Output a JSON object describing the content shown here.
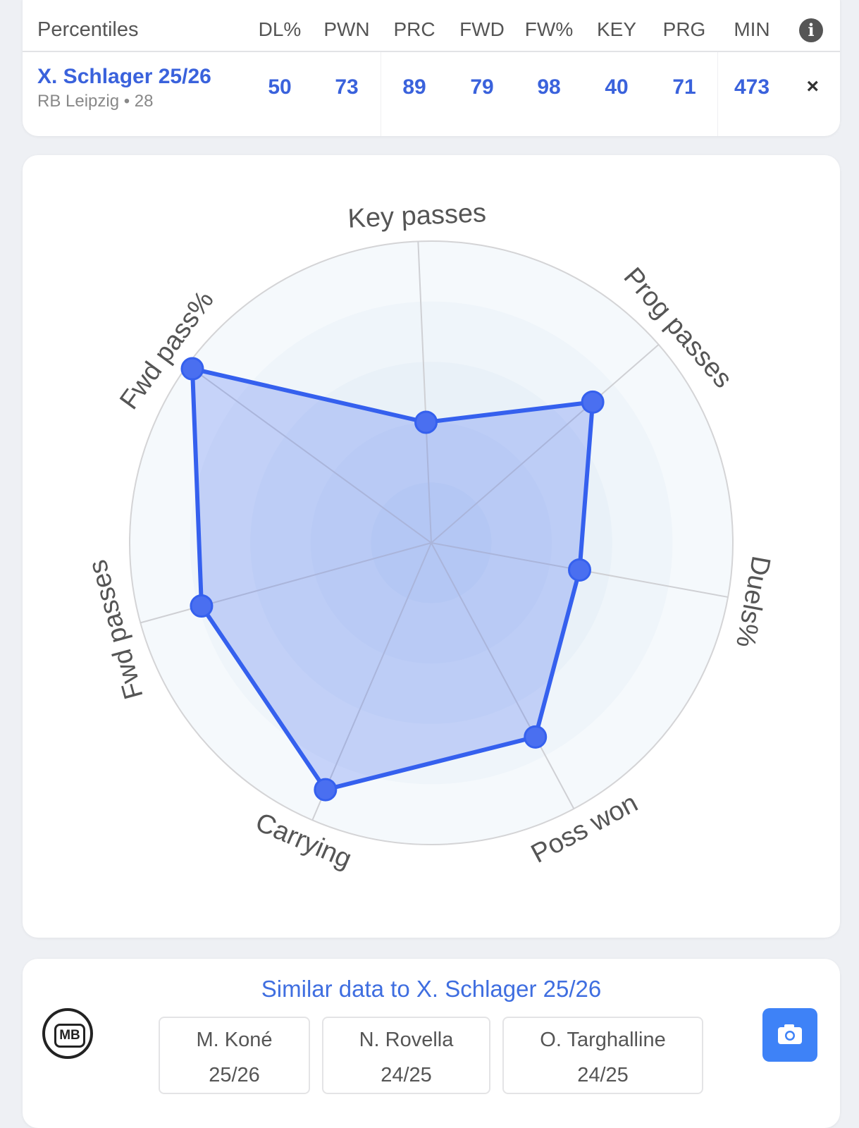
{
  "table": {
    "title": "Percentiles",
    "columns": [
      "DL%",
      "PWN",
      "PRC",
      "FWD",
      "FW%",
      "KEY",
      "PRG",
      "MIN"
    ],
    "player": {
      "name": "X. Schlager 25/26",
      "team": "RB Leipzig • 28",
      "values": [
        "50",
        "73",
        "89",
        "79",
        "98",
        "40",
        "71",
        "473"
      ]
    },
    "close": "×",
    "info": "i"
  },
  "chart_data": {
    "type": "radar",
    "axes": [
      "Key passes",
      "Prog passes",
      "Duels%",
      "Poss won",
      "Carrying",
      "Fwd passes",
      "Fwd pass%"
    ],
    "series": [
      {
        "name": "X. Schlager 25/26",
        "values": [
          40,
          71,
          50,
          73,
          89,
          79,
          98
        ]
      }
    ],
    "range": [
      0,
      100
    ],
    "color": "#3560ee"
  },
  "similar": {
    "title": "Similar data to X. Schlager 25/26",
    "players": [
      {
        "name": "M. Koné",
        "season": "25/26"
      },
      {
        "name": "N. Rovella",
        "season": "24/25"
      },
      {
        "name": "O. Targhalline",
        "season": "24/25"
      }
    ],
    "logo": "MB"
  }
}
